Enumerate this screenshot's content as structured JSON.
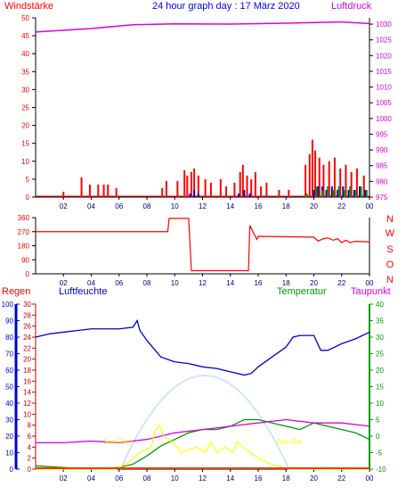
{
  "colors": {
    "red": "#ff0000",
    "blue": "#0000ff",
    "magenta": "#dd00dd",
    "green": "#009900",
    "darkblue": "#0000cc",
    "yellow": "#ffff00",
    "cyan_glow": "#cce6ff",
    "axis": "#000000",
    "darkred": "#cc0000"
  },
  "chart_data": [
    {
      "type": "bar",
      "title": "24 hour graph day : 17 März 2020",
      "ylabel": "Windstärke",
      "y2label": "Luftdruck",
      "x_ticks": [
        "02",
        "04",
        "06",
        "08",
        "10",
        "12",
        "14",
        "16",
        "18",
        "20",
        "22",
        "00"
      ],
      "y_ticks": [
        "0",
        "5",
        "10",
        "15",
        "20",
        "25",
        "30",
        "35",
        "40",
        "45",
        "50"
      ],
      "y2_ticks": [
        "975",
        "980",
        "985",
        "990",
        "995",
        "1000",
        "1005",
        "1010",
        "1015",
        "1020",
        "1025",
        "1030"
      ],
      "ylim": [
        0,
        50
      ],
      "y2lim": [
        975,
        1032
      ],
      "grid": false,
      "series": [
        {
          "name": "",
          "kind": "gust",
          "x": [
            2.0,
            3.3,
            3.9,
            4.5,
            4.9,
            5.2,
            5.8,
            9.1,
            9.4,
            10.2,
            10.7,
            10.9,
            11.2,
            11.4,
            11.7,
            12.2,
            12.6,
            13.3,
            13.7,
            14.3,
            14.7,
            14.9,
            15.2,
            15.5,
            15.8,
            16.2,
            16.6,
            17.5,
            18.2,
            19.4,
            19.7,
            19.9,
            20.1,
            20.4,
            20.7,
            21.1,
            21.5,
            21.9,
            22.3,
            22.7,
            23.1,
            23.6
          ],
          "y": [
            1.5,
            5.5,
            3.5,
            3.5,
            3.5,
            3.5,
            2.5,
            2.5,
            4.5,
            4.5,
            7.5,
            6,
            7,
            8,
            6,
            5,
            4,
            5,
            3,
            4,
            7,
            9,
            6,
            5,
            7,
            3,
            4,
            2,
            2,
            9,
            12,
            16,
            13,
            11,
            9,
            10,
            11,
            8,
            9,
            7,
            8,
            6
          ]
        },
        {
          "name": "",
          "kind": "mean",
          "x": [
            11.1,
            11.4,
            11.7,
            14.6,
            15.0,
            15.4,
            20.0,
            20.3,
            20.6,
            20.9,
            21.3,
            21.7,
            22.1,
            22.5,
            22.9,
            23.3,
            23.7
          ],
          "y": [
            1,
            2,
            1,
            1,
            2,
            1,
            2,
            3,
            3,
            2,
            3,
            2,
            3,
            2,
            2,
            3,
            2
          ]
        },
        {
          "name": "",
          "kind": "avg",
          "x": [
            19.5,
            20.2,
            20.6,
            21.0,
            21.4,
            21.8,
            22.2,
            22.6,
            23.0,
            23.4,
            23.8
          ],
          "y": [
            1,
            3,
            2,
            3,
            2,
            3,
            2,
            3,
            2,
            3,
            2
          ]
        },
        {
          "name": "Luftdruck",
          "x": [
            0,
            4,
            7,
            10,
            14,
            18,
            22,
            24
          ],
          "y": [
            1027.5,
            1028.6,
            1029.8,
            1030.1,
            1030.0,
            1030.3,
            1030.7,
            1030.2
          ]
        }
      ]
    },
    {
      "type": "line",
      "ylabel": "",
      "y_ticks": [
        "0",
        "90",
        "180",
        "270",
        "360"
      ],
      "y2_ticks": [
        "N",
        "W",
        "S",
        "O",
        "N"
      ],
      "ylim": [
        0,
        360
      ],
      "x_ticks": [
        "02",
        "04",
        "06",
        "08",
        "10",
        "12",
        "14",
        "16",
        "18",
        "20",
        "22",
        "00"
      ],
      "series": [
        {
          "name": "",
          "x": [
            0,
            9.5,
            9.6,
            11.0,
            11.2,
            15.3,
            15.4,
            15.9,
            16.0,
            20.0,
            20.3,
            20.7,
            21.0,
            21.4,
            21.7,
            22.0,
            22.3,
            22.6,
            23.0,
            24.0
          ],
          "y": [
            270,
            270,
            355,
            355,
            20,
            20,
            310,
            220,
            240,
            235,
            210,
            225,
            230,
            215,
            225,
            200,
            215,
            200,
            208,
            205
          ]
        }
      ]
    },
    {
      "type": "line",
      "labels": {
        "rain": "Regen",
        "humidity": "Luftfeuchte",
        "temperature": "Temperatur",
        "dewpoint": "Taupunkt"
      },
      "annotations": [
        "Sun Rise",
        "Sun Set"
      ],
      "y_left1_ticks": [
        "0",
        "10",
        "20",
        "30",
        "40",
        "50",
        "60",
        "70",
        "80",
        "90",
        "100"
      ],
      "y_left2_ticks": [
        "0",
        "2",
        "4",
        "6",
        "8",
        "10",
        "12",
        "14",
        "16",
        "18",
        "20",
        "22",
        "24",
        "26",
        "28",
        "30"
      ],
      "y_right_ticks": [
        "-10",
        "-5",
        "0",
        "5",
        "10",
        "15",
        "20",
        "25",
        "30",
        "35",
        "40"
      ],
      "x_ticks": [
        "02",
        "04",
        "06",
        "08",
        "10",
        "12",
        "14",
        "16",
        "18",
        "20",
        "22",
        "00"
      ],
      "humidity_lim": [
        0,
        100
      ],
      "rain_lim": [
        0,
        30
      ],
      "temp_lim": [
        -10,
        40
      ],
      "sunrise_hour": 6.1,
      "sunset_hour": 18.2,
      "series": [
        {
          "name": "Luftfeuchte",
          "x": [
            0,
            1,
            2,
            3,
            4,
            5,
            6,
            7,
            7.3,
            7.5,
            8,
            9,
            10,
            11,
            12,
            13,
            14,
            15,
            15.5,
            16,
            17,
            18,
            18.5,
            19,
            20,
            20.5,
            21,
            22,
            23,
            24
          ],
          "y": [
            80,
            82,
            83,
            84,
            85,
            85,
            85,
            86,
            90,
            84,
            78,
            68,
            65,
            64,
            62,
            61,
            59,
            57,
            58,
            62,
            68,
            74,
            80,
            81,
            81,
            72,
            72,
            76,
            79,
            83
          ]
        },
        {
          "name": "Temperatur",
          "x": [
            0,
            2,
            4,
            6,
            7,
            8,
            9,
            10,
            11,
            12,
            13,
            14,
            15,
            16,
            17,
            18,
            19,
            20,
            21,
            22,
            23,
            24
          ],
          "y": [
            -9,
            -9.5,
            -10,
            -9.5,
            -8.5,
            -6,
            -3,
            -1,
            1,
            2,
            2,
            3,
            5,
            5,
            4,
            3,
            2,
            4,
            3,
            2,
            1,
            -1
          ]
        },
        {
          "name": "Taupunkt",
          "x": [
            0,
            2,
            4,
            6,
            8,
            10,
            12,
            14,
            16,
            18,
            20,
            22,
            24
          ],
          "y": [
            -2,
            -2,
            -1.5,
            -2,
            -1,
            1,
            2,
            3,
            4,
            5,
            4,
            4,
            3
          ]
        },
        {
          "name": "",
          "kind": "solar",
          "x": [
            0,
            5.8,
            6.5,
            7.5,
            8.3,
            8.6,
            8.9,
            9.2,
            9.8,
            10.5,
            11.5,
            12.2,
            12.6,
            13.0,
            13.6,
            14.2,
            14.5,
            14.9,
            15.4,
            16.0,
            16.8,
            17.5,
            18.2,
            24
          ],
          "y": [
            0,
            0,
            1,
            3,
            4,
            7,
            8,
            6,
            5,
            3,
            4,
            3,
            5,
            3,
            4,
            3,
            5,
            4,
            3,
            2,
            1,
            0.5,
            0,
            0
          ]
        },
        {
          "name": "Regen",
          "x": [
            0,
            24
          ],
          "y": [
            0,
            0
          ]
        }
      ]
    }
  ]
}
